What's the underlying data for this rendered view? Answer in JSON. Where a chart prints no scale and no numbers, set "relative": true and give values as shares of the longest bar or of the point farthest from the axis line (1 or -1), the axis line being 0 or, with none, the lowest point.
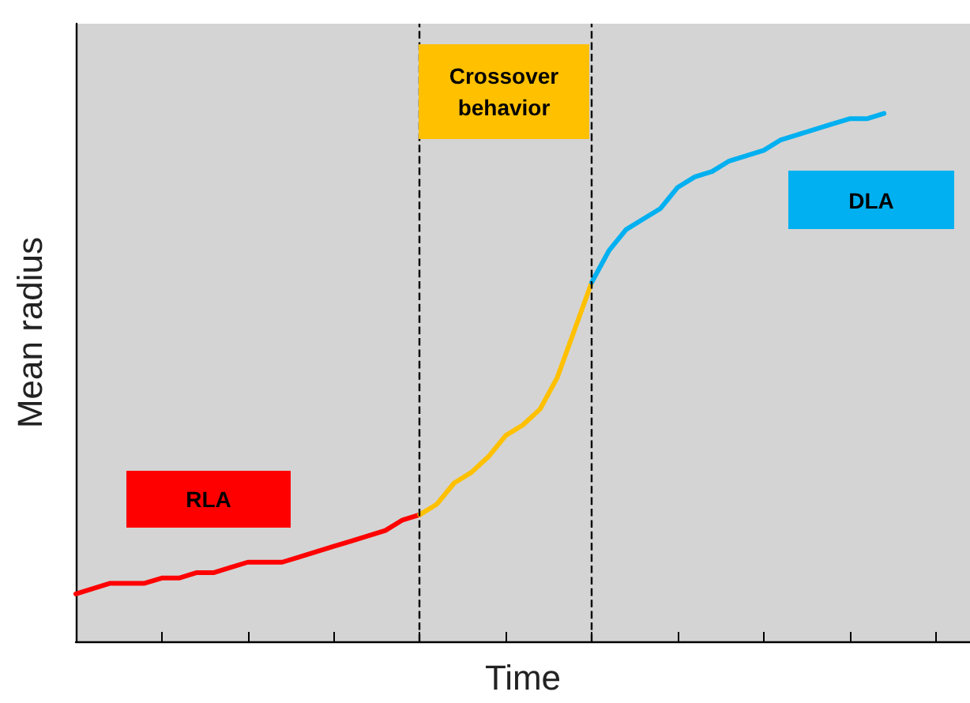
{
  "chart_data": {
    "type": "line",
    "relative": true,
    "xlabel": "Time",
    "ylabel": "Mean radius",
    "categories": [
      null,
      null,
      null,
      null,
      null,
      null,
      null,
      null,
      null,
      null,
      null,
      null,
      null,
      null,
      null,
      null,
      null,
      null,
      null,
      null,
      null,
      null,
      null,
      null,
      null,
      null,
      null,
      null,
      null,
      null,
      null,
      null,
      null,
      null,
      null,
      null,
      null,
      null,
      null,
      null,
      null,
      null,
      null,
      null,
      null,
      null,
      null,
      null,
      null,
      null,
      null,
      null,
      null
    ],
    "series": [
      {
        "color": "#ff0000",
        "values": [
          0.09,
          0.1,
          0.11,
          0.11,
          0.11,
          0.12,
          0.12,
          0.13,
          0.13,
          0.14,
          0.15,
          0.15,
          0.15,
          0.16,
          0.17,
          0.18,
          0.19,
          0.2,
          0.21,
          0.23,
          0.24,
          null,
          null,
          null,
          null,
          null,
          null,
          null,
          null,
          null,
          null,
          null,
          null,
          null,
          null,
          null,
          null,
          null,
          null,
          null,
          null,
          null,
          null,
          null,
          null,
          null,
          null,
          null,
          null,
          null,
          null,
          null,
          null
        ]
      },
      {
        "color": "#ffc000",
        "values": [
          null,
          null,
          null,
          null,
          null,
          null,
          null,
          null,
          null,
          null,
          null,
          null,
          null,
          null,
          null,
          null,
          null,
          null,
          null,
          null,
          0.24,
          0.26,
          0.3,
          0.32,
          0.35,
          0.39,
          0.41,
          0.44,
          0.5,
          0.59,
          0.68,
          null,
          null,
          null,
          null,
          null,
          null,
          null,
          null,
          null,
          null,
          null,
          null,
          null,
          null,
          null,
          null,
          null,
          null,
          null,
          null,
          null,
          null
        ]
      },
      {
        "color": "#00b0f0",
        "values": [
          null,
          null,
          null,
          null,
          null,
          null,
          null,
          null,
          null,
          null,
          null,
          null,
          null,
          null,
          null,
          null,
          null,
          null,
          null,
          null,
          null,
          null,
          null,
          null,
          null,
          null,
          null,
          null,
          null,
          null,
          0.68,
          0.74,
          0.78,
          0.8,
          0.82,
          0.86,
          0.88,
          0.89,
          0.91,
          0.92,
          0.93,
          0.95,
          0.96,
          0.97,
          0.98,
          0.99,
          0.99,
          1.0,
          null,
          null,
          null,
          null,
          null
        ]
      }
    ],
    "annotations": [
      "RLA",
      "Crossover behavior",
      "DLA"
    ],
    "grid": false,
    "marker": "none",
    "line_style": "solid"
  }
}
